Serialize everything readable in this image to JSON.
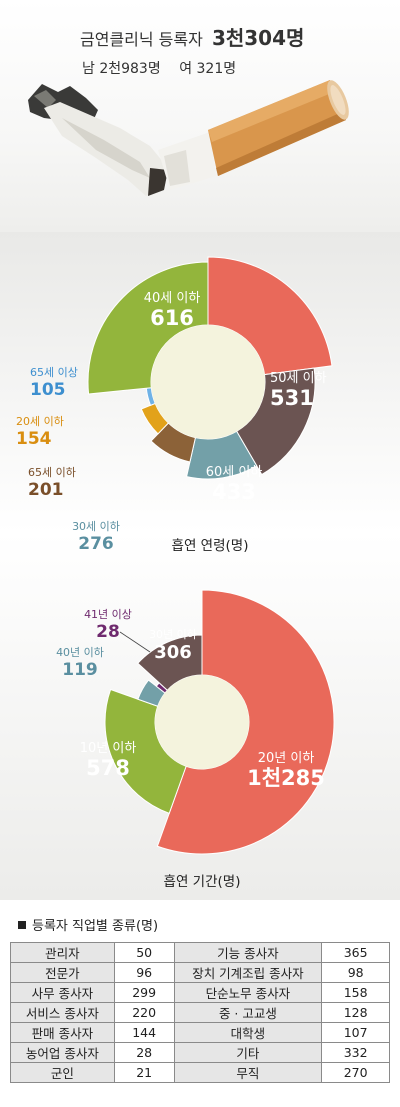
{
  "header": {
    "title_label": "금연클리닉 등록자",
    "title_value": "3천304명",
    "male": "남 2천983명",
    "female": "여 321명"
  },
  "chart_data": [
    {
      "type": "pie",
      "title": "흡연 연령(명)",
      "series": [
        {
          "label": "50세 이하",
          "value": 531,
          "display": "531",
          "color": "#e9695a"
        },
        {
          "label": "60세 이하",
          "value": 433,
          "display": "433",
          "color": "#6b5452"
        },
        {
          "label": "30세 이하",
          "value": 276,
          "display": "276",
          "color": "#73a0a8"
        },
        {
          "label": "65세 이하",
          "value": 201,
          "display": "201",
          "color": "#8c6238"
        },
        {
          "label": "20세 이하",
          "value": 154,
          "display": "154",
          "color": "#e2a21a"
        },
        {
          "label": "65세 이상",
          "value": 105,
          "display": "105",
          "color": "#6fb2e6"
        },
        {
          "label": "40세 이하",
          "value": 616,
          "display": "616",
          "color": "#93b53c"
        }
      ]
    },
    {
      "type": "pie",
      "title": "흡연 기간(명)",
      "series": [
        {
          "label": "20년 이하",
          "value": 1285,
          "display": "1천285",
          "color": "#e9695a"
        },
        {
          "label": "10년 이하",
          "value": 578,
          "display": "578",
          "color": "#93b53c"
        },
        {
          "label": "40년 이하",
          "value": 119,
          "display": "119",
          "color": "#73a0a8"
        },
        {
          "label": "41년 이상",
          "value": 28,
          "display": "28",
          "color": "#6f2a6e"
        },
        {
          "label": "30년 이하",
          "value": 306,
          "display": "306",
          "color": "#6b5452"
        }
      ]
    }
  ],
  "table": {
    "title": "등록자 직업별 종류(명)",
    "rows": [
      {
        "c1": "관리자",
        "v1": "50",
        "c2": "기능 종사자",
        "v2": "365"
      },
      {
        "c1": "전문가",
        "v1": "96",
        "c2": "장치 기계조립 종사자",
        "v2": "98"
      },
      {
        "c1": "사무 종사자",
        "v1": "299",
        "c2": "단순노무 종사자",
        "v2": "158"
      },
      {
        "c1": "서비스 종사자",
        "v1": "220",
        "c2": "중 · 고교생",
        "v2": "128"
      },
      {
        "c1": "판매 종사자",
        "v1": "144",
        "c2": "대학생",
        "v2": "107"
      },
      {
        "c1": "농어업 종사자",
        "v1": "28",
        "c2": "기타",
        "v2": "332"
      },
      {
        "c1": "군인",
        "v1": "21",
        "c2": "무직",
        "v2": "270"
      }
    ]
  }
}
